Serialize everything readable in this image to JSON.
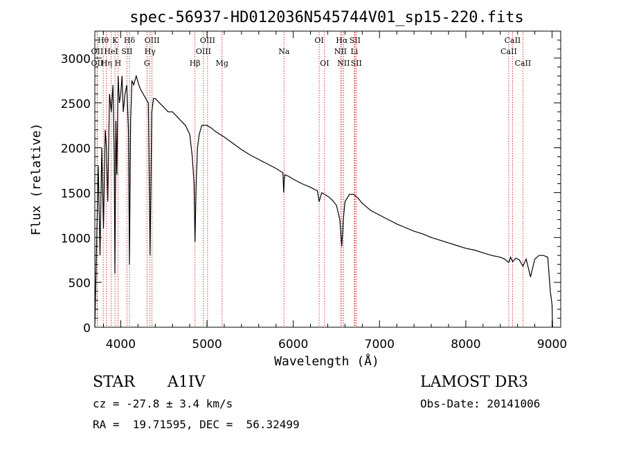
{
  "chart_data": {
    "type": "line",
    "title": "spec-56937-HD012036N545744V01_sp15-220.fits",
    "xlabel": "Wavelength (Å)",
    "ylabel": "Flux (relative)",
    "xlim": [
      3700,
      9100
    ],
    "ylim": [
      0,
      3300
    ],
    "xticks": [
      4000,
      5000,
      6000,
      7000,
      8000,
      9000
    ],
    "yticks": [
      0,
      500,
      1000,
      1500,
      2000,
      2500,
      3000
    ],
    "series": [
      {
        "name": "flux",
        "color": "#000000",
        "x": [
          3700,
          3720,
          3740,
          3760,
          3780,
          3800,
          3820,
          3835,
          3850,
          3870,
          3890,
          3910,
          3925,
          3933,
          3945,
          3955,
          3970,
          3985,
          4000,
          4015,
          4030,
          4050,
          4070,
          4090,
          4101,
          4115,
          4130,
          4150,
          4180,
          4210,
          4230,
          4260,
          4290,
          4320,
          4340,
          4360,
          4380,
          4400,
          4450,
          4500,
          4550,
          4600,
          4650,
          4700,
          4750,
          4800,
          4830,
          4850,
          4861,
          4875,
          4890,
          4910,
          4940,
          5000,
          5050,
          5100,
          5200,
          5300,
          5400,
          5500,
          5600,
          5700,
          5800,
          5880,
          5890,
          5896,
          5905,
          5950,
          6000,
          6100,
          6200,
          6280,
          6300,
          6330,
          6400,
          6450,
          6500,
          6540,
          6563,
          6580,
          6600,
          6650,
          6700,
          6750,
          6800,
          6900,
          7000,
          7100,
          7200,
          7300,
          7400,
          7500,
          7600,
          7700,
          7800,
          7900,
          8000,
          8100,
          8200,
          8300,
          8400,
          8450,
          8498,
          8520,
          8542,
          8580,
          8620,
          8662,
          8700,
          8750,
          8800,
          8850,
          8900,
          8950,
          8980,
          9000,
          9005
        ],
        "y": [
          0,
          900,
          1800,
          800,
          2000,
          1100,
          2200,
          2000,
          1400,
          2600,
          2400,
          2700,
          1900,
          600,
          2300,
          1700,
          2800,
          2500,
          2600,
          2800,
          2400,
          2600,
          2700,
          2200,
          700,
          2300,
          2750,
          2700,
          2800,
          2700,
          2650,
          2600,
          2550,
          2500,
          800,
          2400,
          2550,
          2550,
          2500,
          2450,
          2400,
          2400,
          2350,
          2300,
          2250,
          2150,
          1900,
          1600,
          950,
          1600,
          2000,
          2150,
          2250,
          2250,
          2220,
          2180,
          2120,
          2050,
          1980,
          1920,
          1870,
          1820,
          1770,
          1720,
          1500,
          1650,
          1700,
          1680,
          1650,
          1600,
          1560,
          1520,
          1400,
          1500,
          1460,
          1420,
          1360,
          1200,
          900,
          1200,
          1400,
          1480,
          1480,
          1440,
          1380,
          1300,
          1250,
          1200,
          1150,
          1110,
          1070,
          1040,
          1000,
          970,
          940,
          910,
          880,
          860,
          830,
          800,
          780,
          760,
          720,
          780,
          730,
          770,
          750,
          680,
          760,
          560,
          760,
          800,
          800,
          780,
          400,
          250,
          0
        ]
      }
    ],
    "lines": [
      {
        "label": "Hθ",
        "x": 3797,
        "row": 1
      },
      {
        "label": "OII",
        "x": 3727,
        "row": 2
      },
      {
        "label": "OII",
        "x": 3727,
        "row": 3
      },
      {
        "label": "Hη",
        "x": 3835,
        "row": 3
      },
      {
        "label": "HeI",
        "x": 3889,
        "row": 2
      },
      {
        "label": "K",
        "x": 3934,
        "row": 1
      },
      {
        "label": "H",
        "x": 3968,
        "row": 3
      },
      {
        "label": "SII",
        "x": 4072,
        "row": 2
      },
      {
        "label": "Hδ",
        "x": 4101,
        "row": 1
      },
      {
        "label": "OIII",
        "x": 4363,
        "row": 1
      },
      {
        "label": "Hγ",
        "x": 4340,
        "row": 2
      },
      {
        "label": "G",
        "x": 4304,
        "row": 3
      },
      {
        "label": "Hβ",
        "x": 4861,
        "row": 3
      },
      {
        "label": "OIII",
        "x": 5007,
        "row": 1
      },
      {
        "label": "OIII",
        "x": 4959,
        "row": 2
      },
      {
        "label": "Mg",
        "x": 5175,
        "row": 3
      },
      {
        "label": "Na",
        "x": 5893,
        "row": 2
      },
      {
        "label": "OI",
        "x": 6300,
        "row": 1
      },
      {
        "label": "OI",
        "x": 6363,
        "row": 3
      },
      {
        "label": "Hα",
        "x": 6563,
        "row": 1
      },
      {
        "label": "NII",
        "x": 6548,
        "row": 2
      },
      {
        "label": "NII",
        "x": 6583,
        "row": 3
      },
      {
        "label": "SII",
        "x": 6716,
        "row": 1
      },
      {
        "label": "Li",
        "x": 6708,
        "row": 2
      },
      {
        "label": "SII",
        "x": 6731,
        "row": 3
      },
      {
        "label": "CaII",
        "x": 8542,
        "row": 1
      },
      {
        "label": "CaII",
        "x": 8498,
        "row": 2
      },
      {
        "label": "CaII",
        "x": 8662,
        "row": 3
      }
    ]
  },
  "info": {
    "object_type": "STAR",
    "subclass": "A1IV",
    "survey": "LAMOST DR3",
    "cz": "cz = -27.8 ± 3.4 km/s",
    "obs_date": "Obs-Date: 20141006",
    "coords": "RA =  19.71595, DEC =  56.32499"
  }
}
